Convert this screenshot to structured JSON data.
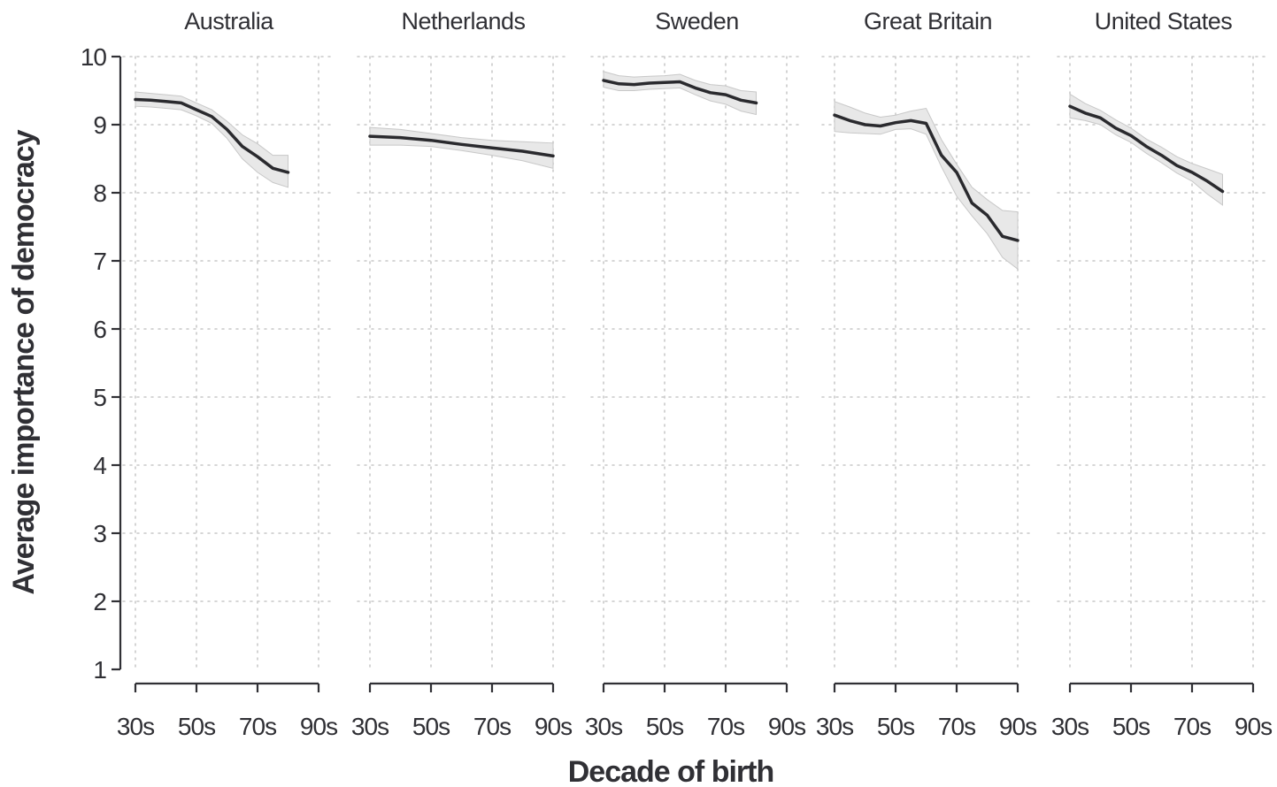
{
  "chart_data": {
    "type": "line",
    "xlabel": "Decade of birth",
    "ylabel": "Average importance of democracy",
    "ylim": [
      1,
      10
    ],
    "y_ticks": [
      "1",
      "2",
      "3",
      "4",
      "5",
      "6",
      "7",
      "8",
      "9",
      "10"
    ],
    "xlim": [
      1930,
      1990
    ],
    "x_ticks": [
      {
        "value": 1930,
        "label": "30s"
      },
      {
        "value": 1950,
        "label": "50s"
      },
      {
        "value": 1970,
        "label": "70s"
      },
      {
        "value": 1990,
        "label": "90s"
      }
    ],
    "grid": true,
    "band": "confidence interval",
    "panels": [
      {
        "name": "Australia",
        "color": "#2a2a2e",
        "x": [
          1930,
          1935,
          1940,
          1945,
          1950,
          1955,
          1960,
          1965,
          1970,
          1975,
          1980
        ],
        "y": [
          9.37,
          9.36,
          9.34,
          9.32,
          9.22,
          9.12,
          8.93,
          8.68,
          8.53,
          8.36,
          8.3
        ],
        "lower": [
          9.27,
          9.26,
          9.24,
          9.22,
          9.13,
          9.02,
          8.8,
          8.5,
          8.3,
          8.15,
          8.08
        ],
        "upper": [
          9.48,
          9.46,
          9.44,
          9.42,
          9.32,
          9.22,
          9.05,
          8.85,
          8.72,
          8.55,
          8.55
        ]
      },
      {
        "name": "Netherlands",
        "color": "#2a2a2e",
        "x": [
          1930,
          1940,
          1950,
          1960,
          1970,
          1980,
          1990
        ],
        "y": [
          8.83,
          8.81,
          8.77,
          8.71,
          8.66,
          8.61,
          8.54
        ],
        "lower": [
          8.7,
          8.7,
          8.68,
          8.62,
          8.55,
          8.47,
          8.36
        ],
        "upper": [
          8.96,
          8.93,
          8.87,
          8.81,
          8.77,
          8.75,
          8.73
        ]
      },
      {
        "name": "Sweden",
        "color": "#2a2a2e",
        "x": [
          1930,
          1935,
          1940,
          1945,
          1950,
          1955,
          1960,
          1965,
          1970,
          1975,
          1980
        ],
        "y": [
          9.65,
          9.6,
          9.59,
          9.61,
          9.62,
          9.63,
          9.54,
          9.47,
          9.44,
          9.36,
          9.32
        ],
        "lower": [
          9.55,
          9.5,
          9.5,
          9.52,
          9.53,
          9.54,
          9.44,
          9.35,
          9.3,
          9.2,
          9.15
        ],
        "upper": [
          9.78,
          9.72,
          9.7,
          9.71,
          9.72,
          9.74,
          9.65,
          9.59,
          9.57,
          9.5,
          9.48
        ]
      },
      {
        "name": "Great Britain",
        "color": "#2a2a2e",
        "x": [
          1930,
          1935,
          1940,
          1945,
          1950,
          1955,
          1960,
          1965,
          1970,
          1975,
          1980,
          1985,
          1990
        ],
        "y": [
          9.14,
          9.06,
          9.0,
          8.98,
          9.03,
          9.06,
          9.02,
          8.55,
          8.3,
          7.85,
          7.67,
          7.36,
          7.3
        ],
        "lower": [
          8.9,
          8.88,
          8.87,
          8.86,
          8.93,
          8.94,
          8.86,
          8.38,
          7.95,
          7.66,
          7.4,
          7.05,
          6.88
        ],
        "upper": [
          9.34,
          9.26,
          9.17,
          9.11,
          9.14,
          9.2,
          9.24,
          8.78,
          8.42,
          8.08,
          7.9,
          7.74,
          7.72
        ]
      },
      {
        "name": "United States",
        "color": "#2a2a2e",
        "x": [
          1930,
          1935,
          1940,
          1945,
          1950,
          1955,
          1960,
          1965,
          1970,
          1975,
          1980
        ],
        "y": [
          9.27,
          9.17,
          9.1,
          8.95,
          8.84,
          8.68,
          8.55,
          8.4,
          8.3,
          8.17,
          8.02
        ],
        "lower": [
          9.1,
          9.06,
          9.0,
          8.85,
          8.74,
          8.58,
          8.44,
          8.29,
          8.17,
          7.98,
          7.82
        ],
        "upper": [
          9.45,
          9.31,
          9.21,
          9.07,
          8.95,
          8.79,
          8.67,
          8.53,
          8.43,
          8.35,
          8.27
        ]
      }
    ]
  }
}
